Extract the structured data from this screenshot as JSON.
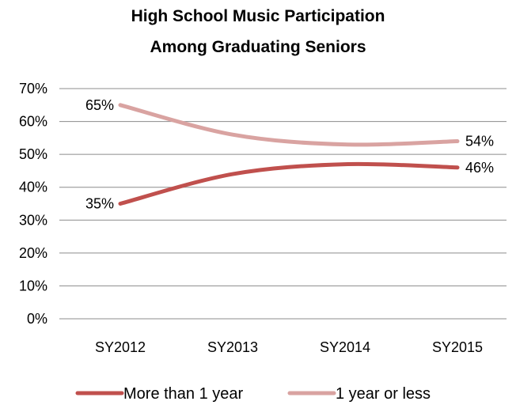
{
  "chart_data": {
    "type": "line",
    "title_lines": [
      "High School Music Participation",
      "Among Graduating Seniors"
    ],
    "categories": [
      "SY2012",
      "SY2013",
      "SY2014",
      "SY2015"
    ],
    "y_ticks": [
      "0%",
      "10%",
      "20%",
      "30%",
      "40%",
      "50%",
      "60%",
      "70%"
    ],
    "ylim": [
      0,
      70
    ],
    "y_tick_step": 10,
    "grid": true,
    "legend_position": "bottom",
    "series": [
      {
        "name": "More than 1 year",
        "values": [
          35,
          44,
          47,
          46
        ],
        "color": "#c0504d",
        "data_labels": [
          {
            "index": 0,
            "text": "35%",
            "side": "left"
          },
          {
            "index": 3,
            "text": "46%",
            "side": "right"
          }
        ]
      },
      {
        "name": "1 year or less",
        "values": [
          65,
          56,
          53,
          54
        ],
        "color": "#d9a3a1",
        "data_labels": [
          {
            "index": 0,
            "text": "65%",
            "side": "left"
          },
          {
            "index": 3,
            "text": "54%",
            "side": "right"
          }
        ]
      }
    ]
  }
}
